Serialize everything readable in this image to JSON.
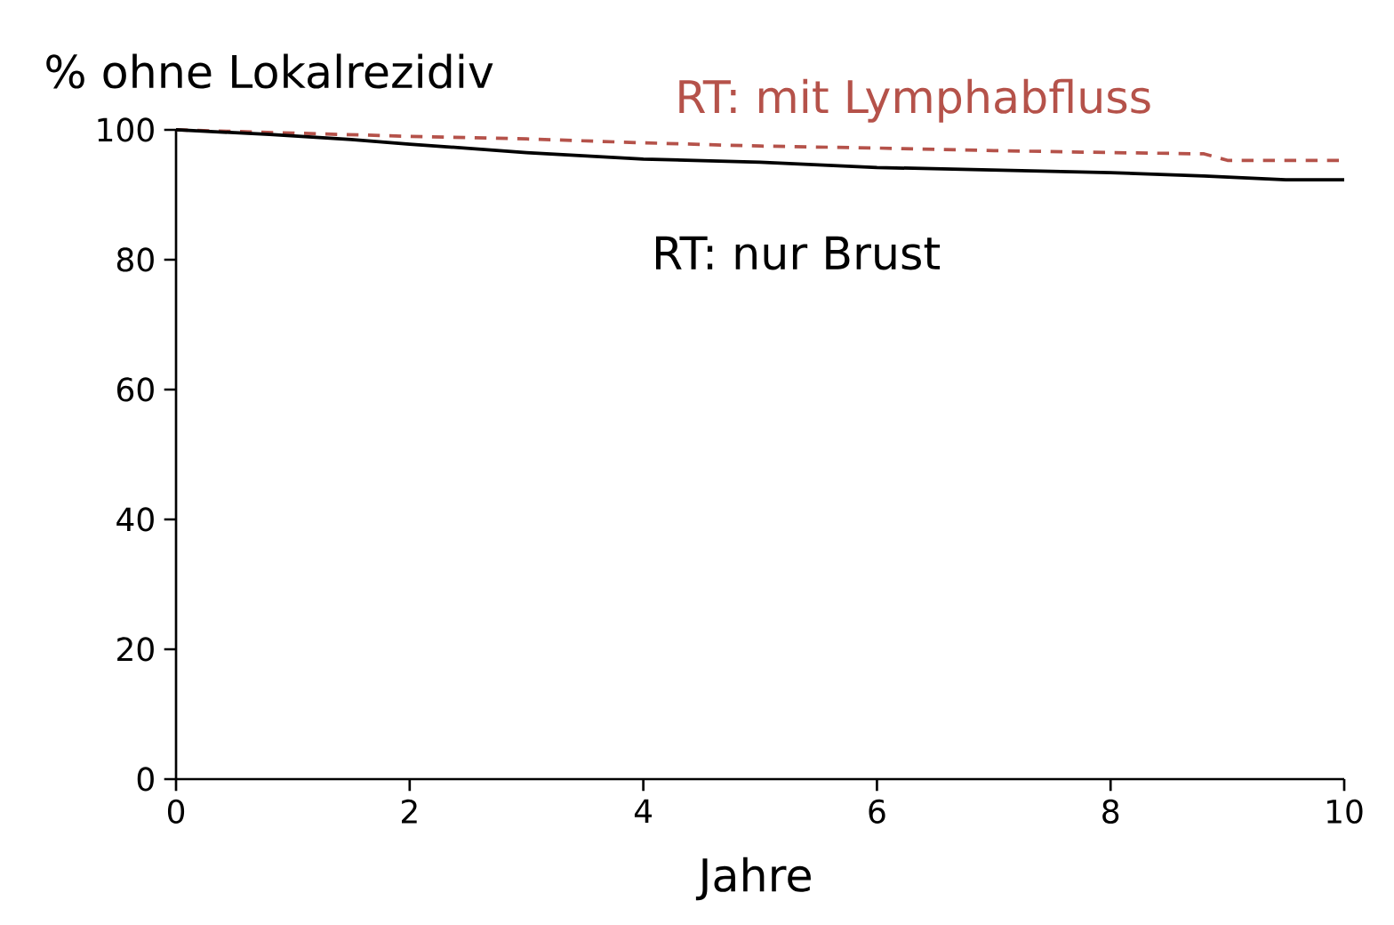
{
  "chart_data": {
    "type": "line",
    "xlabel": "Jahre",
    "ylabel": "% ohne Lokalrezidiv",
    "xlim": [
      0,
      10
    ],
    "ylim": [
      0,
      100
    ],
    "xticks": [
      0,
      2,
      4,
      6,
      8,
      10
    ],
    "yticks": [
      0,
      20,
      40,
      60,
      80,
      100
    ],
    "series": [
      {
        "name": "RT: mit Lymphabfluss",
        "color": "#b5524a",
        "line_style": "dashed",
        "x": [
          0,
          1,
          2,
          3,
          4,
          5,
          6,
          7,
          8,
          8.8,
          9,
          10
        ],
        "values": [
          100,
          99.5,
          99,
          98.6,
          98,
          97.5,
          97.2,
          96.8,
          96.5,
          96.3,
          95.3,
          95.3
        ]
      },
      {
        "name": "RT: nur Brust",
        "color": "#000000",
        "line_style": "solid",
        "x": [
          0,
          0.8,
          1.5,
          2,
          3,
          4,
          5,
          6,
          7,
          8,
          8.8,
          9.5,
          10
        ],
        "values": [
          100,
          99.3,
          98.5,
          97.8,
          96.5,
          95.5,
          95,
          94.2,
          93.8,
          93.4,
          92.9,
          92.3,
          92.3
        ]
      }
    ]
  }
}
